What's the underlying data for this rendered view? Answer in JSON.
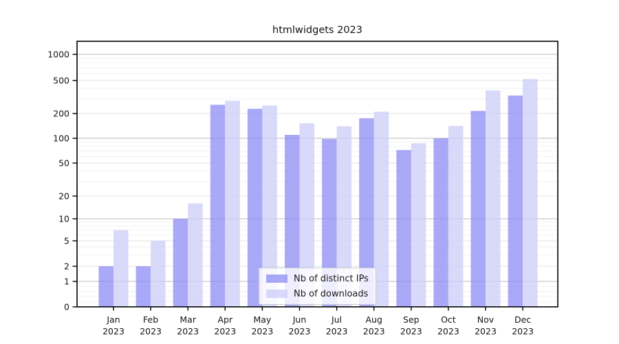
{
  "title": "htmlwidgets 2023",
  "chart_data": {
    "type": "bar",
    "title": "htmlwidgets 2023",
    "categories": [
      "Jan",
      "Feb",
      "Mar",
      "Apr",
      "May",
      "Jun",
      "Jul",
      "Aug",
      "Sep",
      "Oct",
      "Nov",
      "Dec"
    ],
    "x_tick_year": "2023",
    "series": [
      {
        "name": "Nb of distinct IPs",
        "color": "#8c8cf6",
        "values": [
          2,
          2,
          10,
          255,
          228,
          110,
          98,
          175,
          72,
          100,
          215,
          330
        ]
      },
      {
        "name": "Nb of downloads",
        "color": "#ccccf8",
        "values": [
          7,
          5,
          16,
          285,
          250,
          152,
          140,
          210,
          87,
          141,
          380,
          520
        ]
      }
    ],
    "yticks": [
      0,
      1,
      2,
      5,
      10,
      20,
      50,
      100,
      200,
      500,
      1000
    ],
    "ylim": [
      0,
      1400
    ],
    "yscale": "log-with-zero-baseline",
    "grid": true,
    "legend_position": "lower center",
    "bar_opacity": 0.75,
    "axis_color": "#000000",
    "major_grid_color": "#bbbbbb",
    "labeled_grid_color": "#e3e3e3",
    "minor_grid_color": "#f2f2f2"
  }
}
